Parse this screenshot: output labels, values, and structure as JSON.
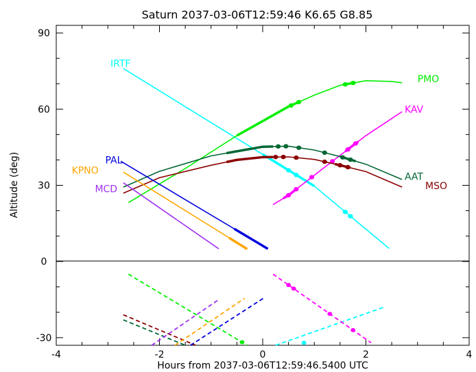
{
  "chart_data": {
    "type": "line",
    "title": "Saturn 2037-03-06T12:59:46  K6.65  G8.85",
    "xlabel": "Hours from 2037-03-06T12:59:46.5400 UTC",
    "ylabel": "Altitude (deg)",
    "xlim": [
      -4,
      4
    ],
    "ylim": [
      -33,
      93
    ],
    "x_ticks": [
      -4,
      -2,
      0,
      2,
      4
    ],
    "x_tick_labels": [
      "-4",
      "-2",
      "0",
      "2",
      "4"
    ],
    "y_ticks": [
      -30,
      0,
      30,
      60,
      90
    ],
    "y_tick_labels": [
      "-30",
      "0",
      "30",
      "60",
      "90"
    ],
    "grid": false,
    "legend": "inline labels next to curves",
    "series": [
      {
        "name": "IRTF",
        "color": "#00FFFF",
        "label_pos": [
          -2.95,
          78
        ],
        "up": [
          [
            -2.7,
            76
          ],
          [
            0,
            42.2
          ],
          [
            1.0,
            29.7
          ],
          [
            2.45,
            5.1
          ]
        ],
        "thick": [
          [
            0,
            1.0
          ]
        ],
        "dots": [
          0.5,
          0.65,
          1.6,
          1.7
        ],
        "down": [
          [
            0.25,
            -37
          ],
          [
            2.35,
            -18
          ]
        ],
        "down_dots": [
          0.55,
          0.8
        ]
      },
      {
        "name": "PMO",
        "color": "#00EE00",
        "label_pos": [
          3.0,
          72
        ],
        "up": [
          [
            -2.6,
            23.2
          ],
          [
            -1.5,
            36.6
          ],
          [
            -0.5,
            49.6
          ],
          [
            0.5,
            61.0
          ],
          [
            1.0,
            65.5
          ],
          [
            1.5,
            69.4
          ],
          [
            2.0,
            71.2
          ],
          [
            2.5,
            70.9
          ],
          [
            2.7,
            70.4
          ]
        ],
        "thick": [
          [
            -0.5,
            0.7
          ],
          [
            1.55,
            1.8
          ]
        ],
        "dots": [
          0.55,
          0.7,
          1.6,
          1.75
        ],
        "down": [
          [
            -2.6,
            -5
          ],
          [
            -0.3,
            -33
          ]
        ],
        "down_dots": [
          -0.4
        ]
      },
      {
        "name": "KAV",
        "color": "#FF00FF",
        "label_pos": [
          2.75,
          60
        ],
        "up": [
          [
            0.2,
            22.4
          ],
          [
            0.5,
            26.1
          ],
          [
            1.0,
            34.0
          ],
          [
            1.5,
            41.8
          ],
          [
            2.0,
            49.6
          ],
          [
            2.7,
            59.0
          ]
        ],
        "thick": [
          [
            0.4,
            0.65
          ],
          [
            1.6,
            1.85
          ]
        ],
        "dots": [
          0.5,
          0.65,
          0.95,
          1.35,
          1.65,
          1.8
        ],
        "down": [
          [
            0.2,
            -5
          ],
          [
            2.1,
            -32
          ]
        ],
        "down_dots": [
          0.5,
          0.6,
          1.3,
          1.75
        ]
      },
      {
        "name": "AAT",
        "color": "#006633",
        "label_pos": [
          2.75,
          33.5
        ],
        "up": [
          [
            -2.7,
            29.3
          ],
          [
            -2.0,
            35.5
          ],
          [
            -1.0,
            41.6
          ],
          [
            0,
            45.2
          ],
          [
            0.5,
            45.4
          ],
          [
            1.0,
            43.9
          ],
          [
            1.5,
            41.3
          ],
          [
            2.0,
            38.3
          ],
          [
            2.7,
            32.3
          ]
        ],
        "thick": [
          [
            -0.7,
            0.2
          ],
          [
            1.5,
            1.8
          ]
        ],
        "dots": [
          0.3,
          0.45,
          0.7,
          1.2,
          1.55,
          1.7
        ],
        "down": [
          [
            -2.7,
            -23
          ],
          [
            -1.5,
            -33
          ]
        ],
        "down_dots": []
      },
      {
        "name": "MSO",
        "color": "#8B0000",
        "label_pos": [
          3.15,
          29.8
        ],
        "up": [
          [
            -2.7,
            26.9
          ],
          [
            -2.0,
            33.0
          ],
          [
            -1.0,
            37.9
          ],
          [
            -0.5,
            40.0
          ],
          [
            0,
            41.1
          ],
          [
            0.5,
            41.2
          ],
          [
            1.0,
            40.2
          ],
          [
            1.5,
            37.9
          ],
          [
            2.0,
            35.4
          ],
          [
            2.7,
            29.3
          ]
        ],
        "thick": [
          [
            -0.7,
            0.2
          ],
          [
            1.4,
            1.7
          ]
        ],
        "dots": [
          0.25,
          0.4,
          0.65,
          1.2,
          1.5,
          1.65
        ],
        "down": [
          [
            -2.7,
            -21
          ],
          [
            -1.3,
            -33
          ]
        ],
        "down_dots": []
      },
      {
        "name": "PAL",
        "color": "#0000DD",
        "label_pos": [
          -3.05,
          40
        ],
        "up": [
          [
            -2.75,
            39.5
          ],
          [
            0.1,
            5.0
          ]
        ],
        "thick": [
          [
            -0.55,
            0.1
          ]
        ],
        "dots": [],
        "down": [
          [
            -1.4,
            -33
          ],
          [
            0.05,
            -14
          ]
        ],
        "down_dots": []
      },
      {
        "name": "KPNO",
        "color": "#FFA500",
        "label_pos": [
          -3.7,
          36
        ],
        "up": [
          [
            -2.7,
            35.2
          ],
          [
            -0.3,
            4.9
          ]
        ],
        "thick": [
          [
            -0.65,
            -0.3
          ]
        ],
        "dots": [],
        "down": [
          [
            -1.7,
            -33
          ],
          [
            -0.35,
            -14.5
          ]
        ],
        "down_dots": []
      },
      {
        "name": "MCD",
        "color": "#A030F0",
        "label_pos": [
          -3.25,
          28.6
        ],
        "up": [
          [
            -2.7,
            31.0
          ],
          [
            -0.85,
            5.0
          ]
        ],
        "thick": [],
        "dots": [],
        "down": [
          [
            -2.15,
            -33
          ],
          [
            -0.85,
            -15
          ]
        ],
        "down_dots": []
      }
    ]
  }
}
